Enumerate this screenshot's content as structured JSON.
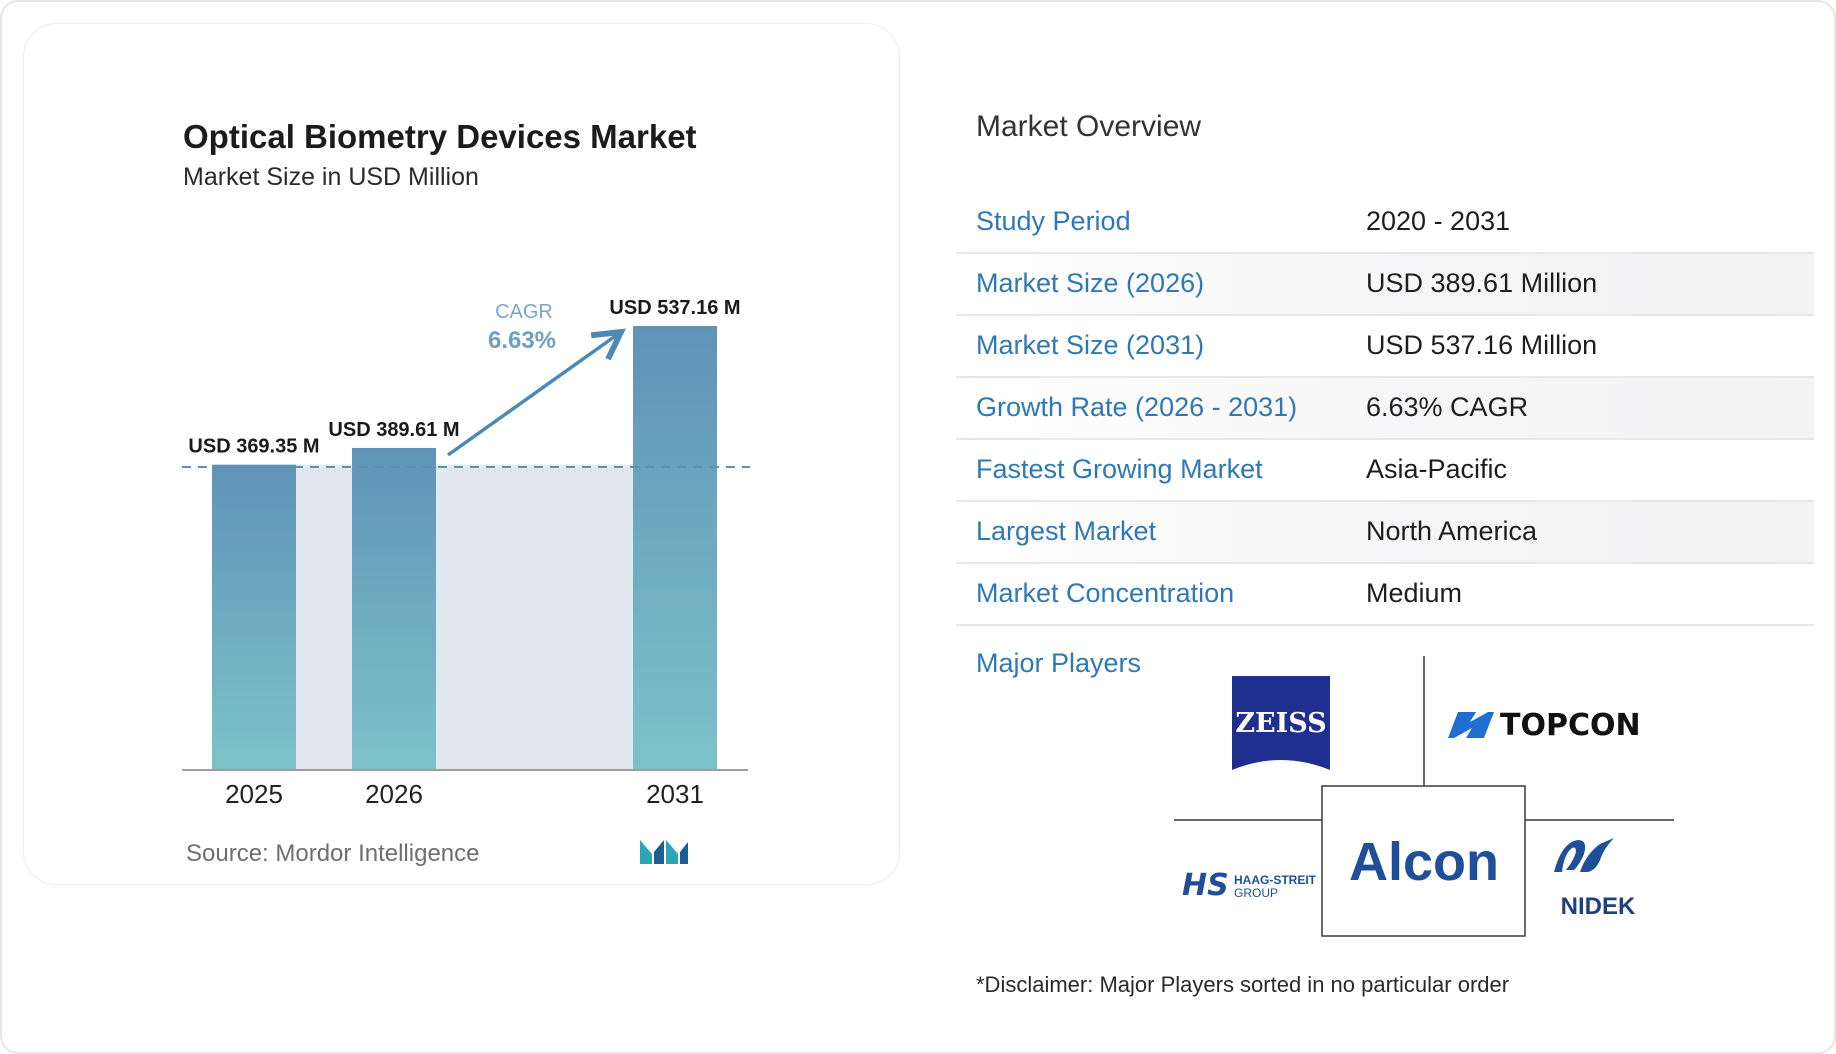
{
  "chart_data": {
    "type": "bar",
    "title": "Optical Biometry Devices Market",
    "subtitle": "Market Size in USD Million",
    "categories": [
      "2025",
      "2026",
      "2031"
    ],
    "values": [
      369.35,
      389.61,
      537.16
    ],
    "value_labels": [
      "USD 369.35 M",
      "USD 389.61 M",
      "USD 537.16 M"
    ],
    "ylim": [
      0,
      560
    ],
    "grid": false,
    "cagr_label": "CAGR",
    "cagr_value": "6.63%",
    "colors": {
      "bar_top": "#5f93b8",
      "bar_bottom": "#7cc1c8",
      "band": "#e1e8f0",
      "arrow": "#4e88b4",
      "cagr_text": "#6f9fc2"
    }
  },
  "source": "Source: Mordor Intelligence",
  "overview": {
    "title": "Market Overview",
    "rows": [
      {
        "label": "Study Period",
        "value": "2020 - 2031"
      },
      {
        "label": "Market Size (2026)",
        "value": "USD 389.61 Million"
      },
      {
        "label": "Market Size (2031)",
        "value": "USD 537.16 Million"
      },
      {
        "label": "Growth Rate (2026 - 2031)",
        "value": "6.63% CAGR"
      },
      {
        "label": "Fastest Growing Market",
        "value": "Asia-Pacific"
      },
      {
        "label": "Largest Market",
        "value": "North America"
      },
      {
        "label": "Market Concentration",
        "value": "Medium"
      }
    ]
  },
  "players": {
    "label": "Major Players",
    "logos": {
      "zeiss": "ZEISS",
      "topcon": "TOPCON",
      "alcon": "Alcon",
      "haag_mark": "HS",
      "haag_line1": "HAAG-STREIT",
      "haag_line2": "GROUP",
      "nidek": "NIDEK"
    }
  },
  "disclaimer": "*Disclaimer: Major Players sorted in no particular order",
  "accent_color": "#2f78b8"
}
